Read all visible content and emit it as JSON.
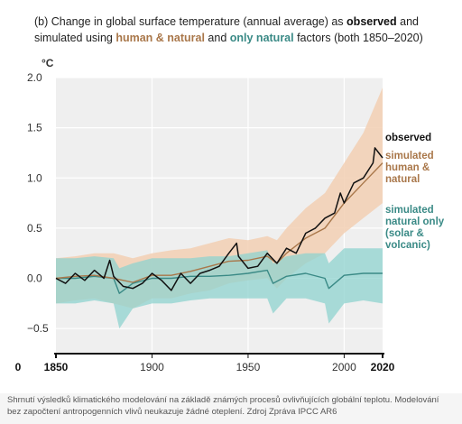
{
  "caption": "Shrnutí výsledků klimatického modelování na základě známých procesů ovlivňujících globální teplotu. Modelování bez započtení antropogenních vlivů neukazuje žádné oteplení. Zdroj Zpráva IPCC AR6",
  "chart_data": {
    "type": "line",
    "title_parts": [
      {
        "text": "(b) Change in global surface temperature (annual average) as ",
        "style": "normal"
      },
      {
        "text": "observed",
        "style": "bold"
      },
      {
        "text": " and",
        "style": "normal"
      }
    ],
    "title_line2_parts": [
      {
        "text": "simulated using ",
        "style": "normal"
      },
      {
        "text": "human & natural",
        "style": "human"
      },
      {
        "text": " and ",
        "style": "normal"
      },
      {
        "text": "only natural",
        "style": "natural"
      },
      {
        "text": " factors (both 1850–2020)",
        "style": "normal"
      }
    ],
    "ylabel": "°C",
    "ylim": [
      -0.75,
      2.0
    ],
    "yticks": [
      "2.0",
      "1.5",
      "1.0",
      "0.5",
      "0.0",
      "−0.5"
    ],
    "ytick_values": [
      2.0,
      1.5,
      1.0,
      0.5,
      0.0,
      -0.5
    ],
    "xlim": [
      1850,
      2020
    ],
    "xticks": [
      {
        "value": 1850,
        "label": "1850",
        "bold": true
      },
      {
        "value": 1900,
        "label": "1900",
        "bold": false
      },
      {
        "value": 1950,
        "label": "1950",
        "bold": false
      },
      {
        "value": 2000,
        "label": "2000",
        "bold": false
      },
      {
        "value": 2020,
        "label": "2020",
        "bold": true
      }
    ],
    "extra_label": "0",
    "grid": true,
    "colors": {
      "observed": "#111111",
      "human": "#a9774a",
      "human_band": "#f2cfb3",
      "natural": "#3a8a86",
      "natural_band": "#8fd3cf",
      "plot_bg": "#efefef",
      "grid": "#ffffff"
    },
    "legend": [
      {
        "key": "observed",
        "lines": [
          "observed"
        ]
      },
      {
        "key": "human",
        "lines": [
          "simulated",
          "human &",
          "natural"
        ]
      },
      {
        "key": "natural",
        "lines": [
          "simulated",
          "natural only",
          "(solar &",
          "volcanic)"
        ]
      }
    ],
    "series": [
      {
        "name": "observed",
        "key": "observed",
        "x": [
          1850,
          1855,
          1860,
          1865,
          1870,
          1875,
          1878,
          1880,
          1885,
          1890,
          1895,
          1900,
          1905,
          1910,
          1915,
          1920,
          1925,
          1930,
          1935,
          1940,
          1944,
          1945,
          1950,
          1955,
          1960,
          1965,
          1970,
          1975,
          1980,
          1985,
          1990,
          1995,
          1998,
          2000,
          2005,
          2010,
          2015,
          2016,
          2020
        ],
        "y": [
          0.0,
          -0.05,
          0.05,
          -0.02,
          0.08,
          0.0,
          0.18,
          0.02,
          -0.08,
          -0.1,
          -0.05,
          0.05,
          -0.02,
          -0.12,
          0.05,
          -0.05,
          0.05,
          0.08,
          0.12,
          0.25,
          0.35,
          0.22,
          0.1,
          0.12,
          0.25,
          0.15,
          0.3,
          0.25,
          0.45,
          0.5,
          0.6,
          0.65,
          0.85,
          0.75,
          0.95,
          1.0,
          1.15,
          1.3,
          1.2
        ]
      },
      {
        "name": "simulated human & natural",
        "key": "human",
        "x": [
          1850,
          1860,
          1870,
          1880,
          1890,
          1900,
          1910,
          1920,
          1930,
          1940,
          1950,
          1960,
          1965,
          1970,
          1980,
          1990,
          2000,
          2010,
          2020
        ],
        "y": [
          0.0,
          0.02,
          0.03,
          0.0,
          -0.04,
          0.03,
          0.03,
          0.07,
          0.12,
          0.17,
          0.18,
          0.22,
          0.15,
          0.25,
          0.4,
          0.5,
          0.75,
          0.95,
          1.15
        ],
        "band_low": [
          -0.25,
          -0.22,
          -0.2,
          -0.25,
          -0.3,
          -0.2,
          -0.2,
          -0.15,
          -0.12,
          -0.05,
          -0.02,
          0.0,
          -0.1,
          0.0,
          0.15,
          0.25,
          0.45,
          0.6,
          0.75
        ],
        "band_high": [
          0.2,
          0.22,
          0.25,
          0.25,
          0.2,
          0.25,
          0.28,
          0.3,
          0.35,
          0.4,
          0.38,
          0.42,
          0.38,
          0.5,
          0.7,
          0.85,
          1.15,
          1.45,
          1.9
        ]
      },
      {
        "name": "simulated natural only",
        "key": "natural",
        "x": [
          1850,
          1860,
          1870,
          1880,
          1883,
          1890,
          1900,
          1910,
          1920,
          1930,
          1940,
          1950,
          1960,
          1963,
          1970,
          1980,
          1990,
          1992,
          2000,
          2010,
          2020
        ],
        "y": [
          0.0,
          0.0,
          0.02,
          0.0,
          -0.15,
          -0.05,
          0.0,
          0.0,
          0.02,
          0.02,
          0.03,
          0.05,
          0.08,
          -0.05,
          0.02,
          0.05,
          0.0,
          -0.1,
          0.03,
          0.05,
          0.05
        ],
        "band_low": [
          -0.25,
          -0.25,
          -0.22,
          -0.25,
          -0.5,
          -0.3,
          -0.25,
          -0.25,
          -0.22,
          -0.2,
          -0.2,
          -0.2,
          -0.2,
          -0.35,
          -0.2,
          -0.2,
          -0.25,
          -0.45,
          -0.25,
          -0.22,
          -0.25
        ],
        "band_high": [
          0.2,
          0.2,
          0.22,
          0.2,
          0.1,
          0.15,
          0.2,
          0.2,
          0.2,
          0.22,
          0.22,
          0.25,
          0.28,
          0.15,
          0.22,
          0.25,
          0.25,
          0.15,
          0.3,
          0.3,
          0.3
        ]
      }
    ]
  }
}
